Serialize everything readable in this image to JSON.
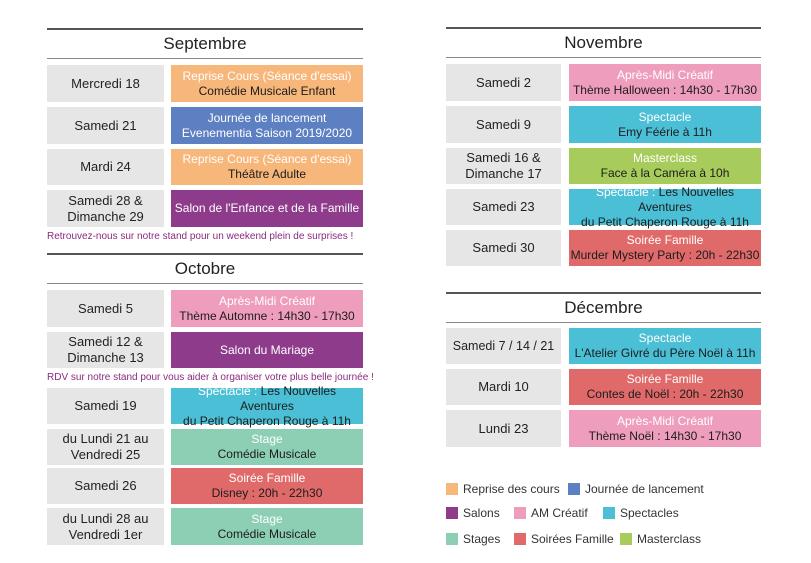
{
  "colors": {
    "reprise": "#f7b67a",
    "lancement": "#5d80c2",
    "salon": "#8f3b8b",
    "am": "#ef9dbd",
    "spectacle": "#4bbfd5",
    "stage": "#8ccfb5",
    "soiree": "#e06a6a",
    "masterclass": "#a7cc5c"
  },
  "months": {
    "septembre": {
      "title": "Septembre",
      "rows": [
        {
          "date": "Mercredi 18",
          "l1": "Reprise Cours (Séance d'essai)",
          "l2": "Comédie Musicale Enfant"
        },
        {
          "date": "Samedi 21",
          "l1": "Journée de lancement",
          "l2": "Evenementia Saison 2019/2020"
        },
        {
          "date": "Mardi 24",
          "l1": "Reprise Cours (Séance d'essai)",
          "l2": "Théâtre Adulte"
        },
        {
          "date": "Samedi 28 & Dimanche 29",
          "l1": "Salon de l'Enfance et de la Famille",
          "l2": ""
        }
      ],
      "note": "Retrouvez-nous sur notre stand pour un weekend plein de surprises !"
    },
    "octobre": {
      "title": "Octobre",
      "rows": [
        {
          "date": "Samedi 5",
          "l1": "Après-Midi Créatif",
          "l2": "Thème Automne : 14h30 - 17h30"
        },
        {
          "date": "Samedi 12 & Dimanche 13",
          "l1": "Salon du Mariage",
          "l2": ""
        },
        {
          "date": "Samedi 19",
          "l1": "Spectacle :",
          "l1b": " Les Nouvelles Aventures",
          "l2": "du Petit Chaperon Rouge à 11h"
        },
        {
          "date": "du Lundi 21 au Vendredi 25",
          "l1": "Stage",
          "l2": "Comédie Musicale"
        },
        {
          "date": "Samedi 26",
          "l1": "Soirée Famille",
          "l2": "Disney : 20h - 22h30"
        },
        {
          "date": "du Lundi 28 au Vendredi 1er",
          "l1": "Stage",
          "l2": "Comédie Musicale"
        }
      ],
      "note": "RDV sur notre stand pour vous aider à organiser votre plus belle journée !"
    },
    "novembre": {
      "title": "Novembre",
      "rows": [
        {
          "date": "Samedi 2",
          "l1": "Après-Midi Créatif",
          "l2": "Thème Halloween : 14h30 - 17h30"
        },
        {
          "date": "Samedi 9",
          "l1": "Spectacle",
          "l2": "Emy Féérie à 11h"
        },
        {
          "date": "Samedi 16 & Dimanche 17",
          "l1": "Masterclass",
          "l2": "Face à la Caméra à 10h"
        },
        {
          "date": "Samedi 23",
          "l1": "Spectacle :",
          "l1b": " Les Nouvelles Aventures",
          "l2": "du Petit Chaperon Rouge à 11h"
        },
        {
          "date": "Samedi 30",
          "l1": "Soirée Famille",
          "l2": "Murder Mystery Party : 20h - 22h30"
        }
      ]
    },
    "decembre": {
      "title": "Décembre",
      "rows": [
        {
          "date": "Samedi 7 / 14 / 21",
          "l1": "Spectacle",
          "l2": "L'Atelier Givré du Père Noël à 11h"
        },
        {
          "date": "Mardi 10",
          "l1": "Soirée Famille",
          "l2": "Contes de Noël : 20h - 22h30"
        },
        {
          "date": "Lundi 23",
          "l1": "Après-Midi Créatif",
          "l2": "Thème Noël : 14h30 - 17h30"
        }
      ]
    }
  },
  "legend": [
    {
      "label": "Reprise des cours"
    },
    {
      "label": "Journée de lancement"
    },
    {
      "label": "Salons"
    },
    {
      "label": "AM Créatif"
    },
    {
      "label": "Spectacles"
    },
    {
      "label": "Stages"
    },
    {
      "label": "Soirées Famille"
    },
    {
      "label": "Masterclass"
    }
  ]
}
